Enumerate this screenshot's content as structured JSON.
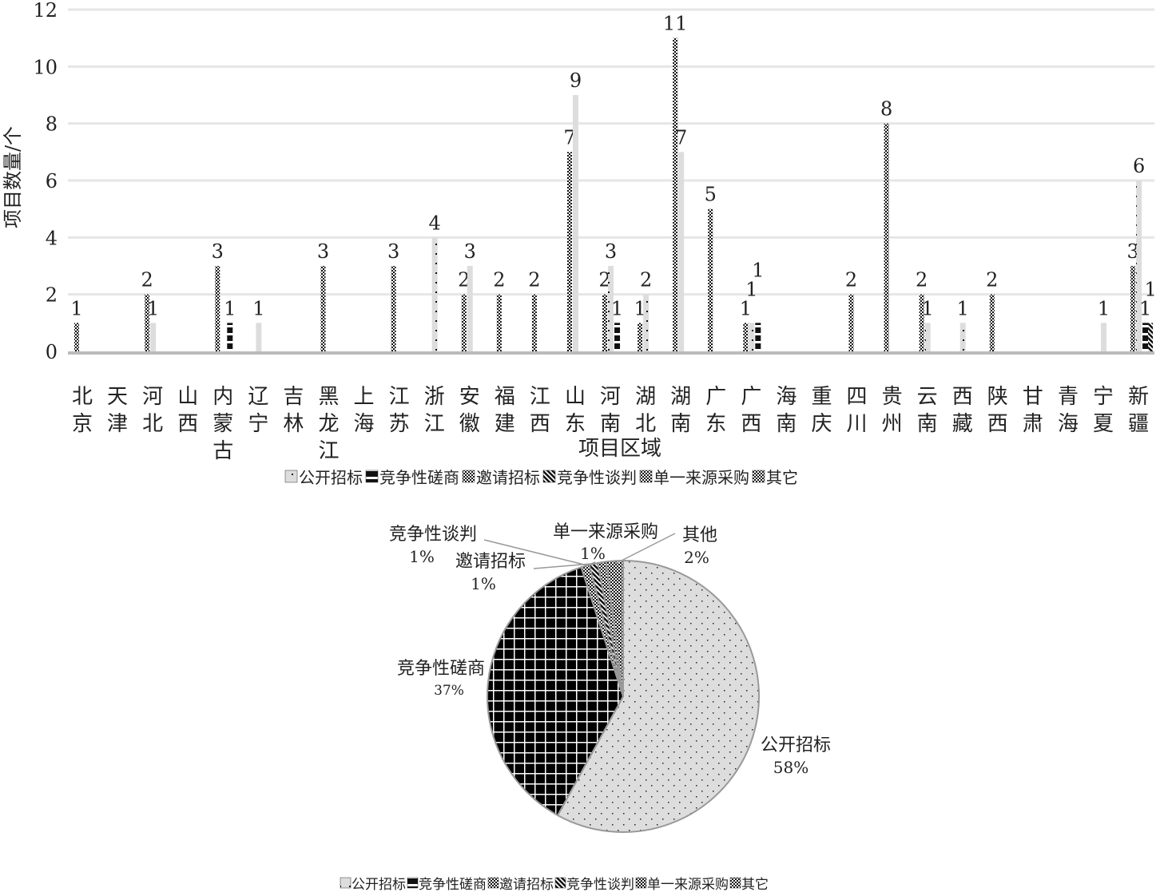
{
  "chart_data": [
    {
      "type": "bar",
      "title": "",
      "xlabel": "项目区域",
      "ylabel": "项目数量/个",
      "ylim": [
        0,
        12
      ],
      "yticks": [
        0,
        2,
        4,
        6,
        8,
        10,
        12
      ],
      "grid": true,
      "legend_position": "bottom",
      "legend": [
        "公开招标",
        "竞争性磋商",
        "邀请招标",
        "竞争性谈判",
        "单一来源采购",
        "其它"
      ],
      "categories": [
        "北京",
        "天津",
        "河北",
        "山西",
        "内蒙古",
        "辽宁",
        "吉林",
        "黑龙江",
        "上海",
        "江苏",
        "浙江",
        "安徽",
        "福建",
        "江西",
        "山东",
        "河南",
        "湖北",
        "湖南",
        "广东",
        "广西",
        "海南",
        "重庆",
        "四川",
        "贵州",
        "云南",
        "西藏",
        "陕西",
        "甘肃",
        "青海",
        "宁夏",
        "新疆"
      ],
      "series": [
        {
          "name": "邀请招标",
          "pattern": "checker",
          "values": [
            1,
            0,
            2,
            0,
            3,
            0,
            0,
            3,
            0,
            3,
            0,
            2,
            2,
            2,
            7,
            2,
            1,
            11,
            5,
            1,
            0,
            0,
            2,
            8,
            2,
            0,
            2,
            0,
            0,
            0,
            3
          ]
        },
        {
          "name": "公开招标",
          "pattern": "dots",
          "values": [
            0,
            0,
            1,
            0,
            0,
            1,
            0,
            0,
            0,
            0,
            4,
            3,
            0,
            0,
            9,
            3,
            2,
            7,
            0,
            1,
            0,
            0,
            0,
            0,
            1,
            1,
            0,
            0,
            0,
            1,
            6
          ]
        },
        {
          "name": "竞争性磋商",
          "pattern": "blocks",
          "values": [
            0,
            0,
            0,
            0,
            1,
            0,
            0,
            0,
            0,
            0,
            0,
            0,
            0,
            0,
            0,
            1,
            0,
            0,
            0,
            1,
            0,
            0,
            0,
            0,
            0,
            0,
            0,
            0,
            0,
            0,
            1
          ]
        },
        {
          "name": "其它",
          "pattern": "diag",
          "values": [
            0,
            0,
            0,
            0,
            0,
            0,
            0,
            0,
            0,
            0,
            0,
            0,
            0,
            0,
            0,
            0,
            0,
            0,
            0,
            0,
            0,
            0,
            0,
            0,
            0,
            0,
            0,
            0,
            0,
            0,
            1
          ]
        }
      ]
    },
    {
      "type": "pie",
      "slices": [
        {
          "label": "公开招标",
          "value": 58,
          "pct": "58%"
        },
        {
          "label": "竞争性磋商",
          "value": 37,
          "pct": "37%"
        },
        {
          "label": "邀请招标",
          "value": 1,
          "pct": "1%"
        },
        {
          "label": "竞争性谈判",
          "value": 1,
          "pct": "1%"
        },
        {
          "label": "单一来源采购",
          "value": 1,
          "pct": "1%"
        },
        {
          "label": "其他",
          "value": 2,
          "pct": "2%"
        }
      ],
      "legend": [
        "公开招标",
        "竞争性磋商",
        "邀请招标",
        "竞争性谈判",
        "单一来源采购",
        "其它"
      ],
      "legend_position": "bottom"
    }
  ]
}
